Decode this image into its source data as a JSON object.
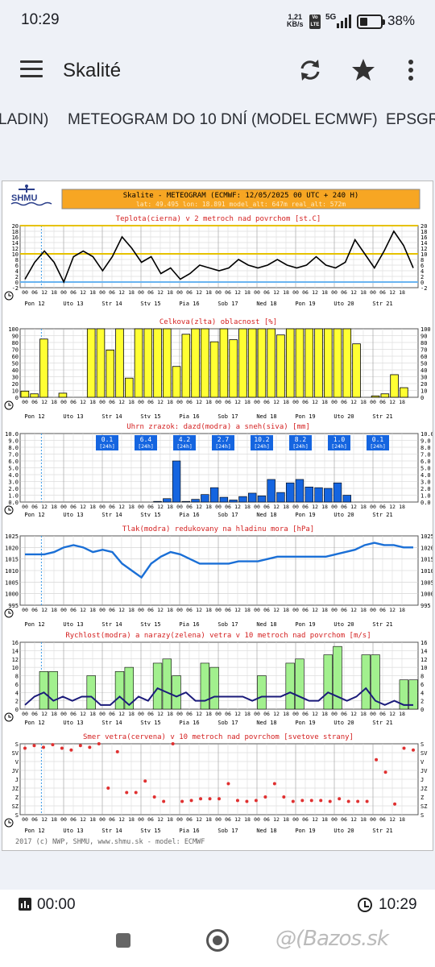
{
  "status": {
    "time": "10:29",
    "net_speed": "1,21",
    "net_unit": "KB/s",
    "volte": "Vo LTE",
    "network": "5G",
    "battery": "38%",
    "battery_level": 0.38
  },
  "appbar": {
    "title": "Skalité",
    "icons": [
      "menu-icon",
      "refresh-icon",
      "star-icon",
      "more-vert-icon"
    ]
  },
  "tabs": [
    {
      "label": "LADIN)"
    },
    {
      "label": "METEOGRAM DO 10 DNÍ (MODEL ECMWF)"
    },
    {
      "label": "EPSGRA"
    }
  ],
  "meteogram": {
    "header": {
      "logo": "SHMU",
      "title": "Skalite - METEOGRAM (ECMWF: 12/05/2025 00 UTC + 240 H)",
      "subtitle": "lat: 49.495   lon: 18.891   model_alt: 647m   real_alt: 572m"
    },
    "day_labels": [
      "Pon 12",
      "Uto 13",
      "Str 14",
      "Stv 15",
      "Pia 16",
      "Sob 17",
      "Ned 18",
      "Pon 19",
      "Uto 20",
      "Str 21"
    ],
    "hour_ticks": [
      "00",
      "06",
      "12",
      "18"
    ],
    "footer": "2017 (c) NWP, SHMU, www.shmu.sk - model: ECMWF"
  },
  "chart_data": [
    {
      "type": "line",
      "title": "Teplota(cierna) v 2 metroch nad povrchom [st.C]",
      "ylim": [
        -2,
        20
      ],
      "y_ticks": [
        "20",
        "18",
        "16",
        "14",
        "12",
        "10",
        "8",
        "6",
        "4",
        "2",
        "0",
        "-2"
      ],
      "series": [
        {
          "values": [
            1,
            7,
            11,
            7,
            0,
            9,
            11,
            9,
            4,
            9,
            16,
            12,
            7,
            9,
            3,
            5,
            1,
            3,
            6,
            5,
            4,
            5,
            8,
            6,
            5,
            6,
            8,
            6,
            5,
            6,
            9,
            6,
            5,
            7,
            15,
            10,
            5,
            11,
            18,
            13,
            5
          ]
        }
      ],
      "reference_lines": [
        0,
        10
      ]
    },
    {
      "type": "bar",
      "title": "Celkova(zlta) oblacnost [%]",
      "ylim": [
        0,
        100
      ],
      "y_ticks": [
        "100",
        "90",
        "80",
        "70",
        "60",
        "50",
        "40",
        "30",
        "20",
        "10",
        "0"
      ],
      "values": [
        9,
        5,
        85,
        0,
        6,
        0,
        0,
        100,
        100,
        69,
        100,
        28,
        100,
        100,
        100,
        100,
        45,
        92,
        100,
        100,
        81,
        100,
        84,
        100,
        100,
        100,
        100,
        91,
        100,
        100,
        100,
        100,
        100,
        100,
        100,
        78,
        0,
        2,
        5,
        33,
        14,
        0
      ]
    },
    {
      "type": "bar",
      "title": "Uhrn zrazok: dazd(modra) a sneh(siva) [mm]",
      "ylim": [
        0,
        10
      ],
      "y_ticks": [
        "10.0",
        "9.0",
        "8.0",
        "7.0",
        "6.0",
        "5.0",
        "4.0",
        "3.0",
        "2.0",
        "1.0",
        "0.0"
      ],
      "values": [
        0,
        0,
        0,
        0,
        0,
        0,
        0,
        0,
        0,
        0,
        0,
        0,
        0,
        0,
        0.1,
        0.5,
        6.0,
        0.1,
        0.4,
        1.1,
        2.1,
        0.7,
        0.3,
        0.8,
        1.3,
        0.9,
        3.3,
        1.4,
        2.8,
        3.3,
        2.2,
        2.1,
        2.0,
        2.8,
        1.0,
        0,
        0,
        0,
        0,
        0,
        0,
        0
      ],
      "daily_totals": [
        {
          "value": "0.1",
          "unit": "[24h]"
        },
        {
          "value": "6.4",
          "unit": "[24h]"
        },
        {
          "value": "4.2",
          "unit": "[24h]"
        },
        {
          "value": "2.7",
          "unit": "[24h]"
        },
        {
          "value": "10.2",
          "unit": "[24h]"
        },
        {
          "value": "8.2",
          "unit": "[24h]"
        },
        {
          "value": "1.0",
          "unit": "[24h]"
        },
        {
          "value": "0.1",
          "unit": "[24h]"
        }
      ]
    },
    {
      "type": "line",
      "title": "Tlak(modra) redukovany na hladinu mora [hPa]",
      "ylim": [
        995,
        1025
      ],
      "y_ticks": [
        "1025",
        "1020",
        "1015",
        "1010",
        "1005",
        "1000",
        "995"
      ],
      "series": [
        {
          "values": [
            1017,
            1017,
            1017,
            1018,
            1020,
            1021,
            1020,
            1018,
            1019,
            1018,
            1013,
            1010,
            1007,
            1013,
            1016,
            1018,
            1017,
            1015,
            1013,
            1013,
            1013,
            1013,
            1014,
            1014,
            1014,
            1015,
            1016,
            1016,
            1016,
            1016,
            1016,
            1016,
            1017,
            1018,
            1019,
            1021,
            1022,
            1021,
            1021,
            1020,
            1020
          ]
        }
      ]
    },
    {
      "type": "bar",
      "title": "Rychlost(modra) a narazy(zelena) vetra v 10 metroch nad povrchom [m/s]",
      "ylim": [
        0,
        16
      ],
      "y_ticks": [
        "16",
        "14",
        "12",
        "10",
        "8",
        "6",
        "4",
        "2",
        "0"
      ],
      "gusts": [
        0,
        0,
        9,
        9,
        0,
        0,
        0,
        8,
        0,
        0,
        9,
        10,
        0,
        0,
        11,
        12,
        8,
        0,
        0,
        11,
        10,
        0,
        0,
        0,
        0,
        8,
        0,
        0,
        11,
        12,
        0,
        0,
        13,
        15,
        0,
        0,
        13,
        13,
        0,
        0,
        7,
        7
      ],
      "speed": [
        1,
        3,
        4,
        2,
        3,
        2,
        3,
        3,
        1,
        1,
        3,
        1,
        3,
        2,
        5,
        4,
        3,
        4,
        2,
        2,
        3,
        3,
        3,
        3,
        2,
        3,
        3,
        3,
        4,
        3,
        2,
        2,
        4,
        3,
        2,
        3,
        5,
        2,
        1,
        2,
        1,
        1
      ]
    },
    {
      "type": "scatter",
      "title": "Smer vetra(cervena) v 10 metroch nad povrchom [svetove strany]",
      "y_ticks": [
        "S",
        "SV",
        "V",
        "JV",
        "J",
        "JZ",
        "Z",
        "SZ",
        "S"
      ],
      "values": [
        7.5,
        7.8,
        7.6,
        7.9,
        7.5,
        7.3,
        7.8,
        7.6,
        8.0,
        3.0,
        7.1,
        2.5,
        2.5,
        3.8,
        2.0,
        1.5,
        8.0,
        1.5,
        1.6,
        1.8,
        1.8,
        1.8,
        3.5,
        1.6,
        1.5,
        1.6,
        2.0,
        3.5,
        2.0,
        1.5,
        1.6,
        1.6,
        1.6,
        1.5,
        1.8,
        1.5,
        1.5,
        1.5,
        6.2,
        4.8,
        1.2,
        7.5,
        7.3
      ]
    }
  ]
}
